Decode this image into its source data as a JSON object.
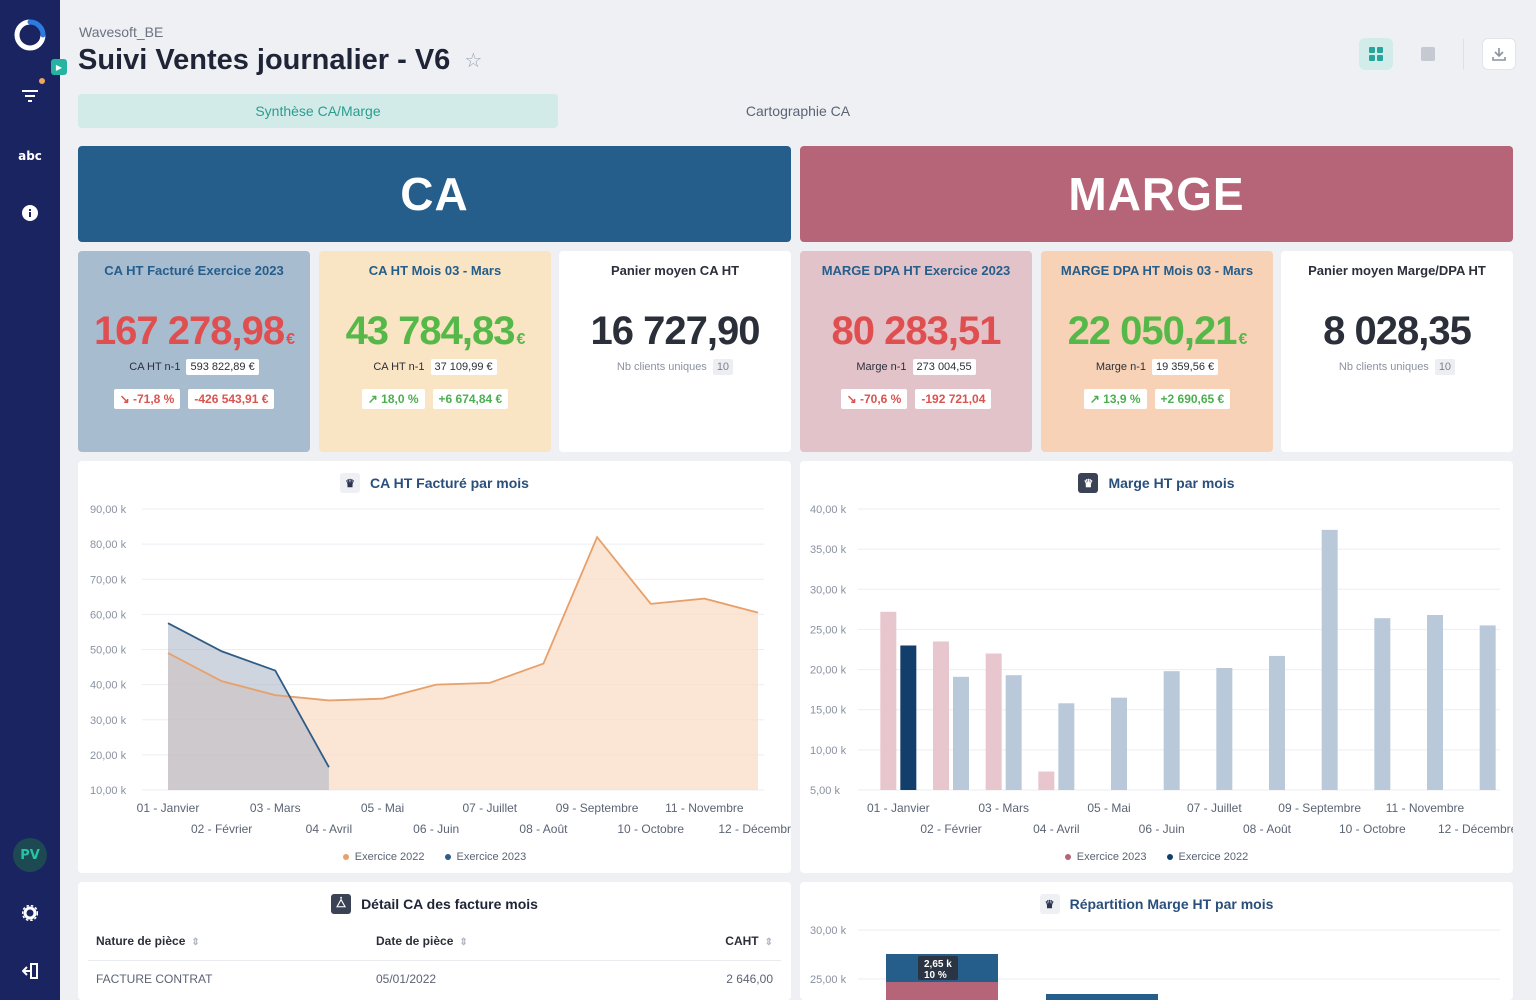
{
  "app": {
    "workspace": "Wavesoft_BE",
    "title": "Suivi Ventes journalier - V6",
    "user_initials": "PV"
  },
  "sidebar": {
    "abc_label": "abc"
  },
  "tabs": [
    {
      "label": "Synthèse CA/Marge",
      "active": true
    },
    {
      "label": "Cartographie CA",
      "active": false
    }
  ],
  "banners": {
    "ca": "CA",
    "marge": "MARGE"
  },
  "kpis": {
    "ca_exercice": {
      "title": "CA HT Facturé Exercice 2023",
      "value": "167 278,98",
      "unit": "€",
      "prev_label": "CA HT n-1",
      "prev_value": "593 822,89 €",
      "delta_pct": "↘ -71,8 %",
      "delta_abs": "-426 543,91 €"
    },
    "ca_mois": {
      "title": "CA HT Mois 03 - Mars",
      "value": "43 784,83",
      "unit": "€",
      "prev_label": "CA HT n-1",
      "prev_value": "37 109,99 €",
      "delta_pct": "↗ 18,0 %",
      "delta_abs": "+6 674,84 €"
    },
    "panier_ca": {
      "title": "Panier moyen CA HT",
      "value": "16 727,90",
      "sub_label": "Nb clients uniques",
      "sub_value": "10"
    },
    "marge_exercice": {
      "title": "MARGE DPA HT Exercice 2023",
      "value": "80 283,51",
      "prev_label": "Marge n-1",
      "prev_value": "273 004,55",
      "delta_pct": "↘ -70,6 %",
      "delta_abs": "-192 721,04"
    },
    "marge_mois": {
      "title": "MARGE DPA HT Mois 03 - Mars",
      "value": "22 050,21",
      "unit": "€",
      "prev_label": "Marge n-1",
      "prev_value": "19 359,56 €",
      "delta_pct": "↗ 13,9 %",
      "delta_abs": "+2 690,65 €"
    },
    "panier_marge": {
      "title": "Panier moyen Marge/DPA HT",
      "value": "8 028,35",
      "sub_label": "Nb clients uniques",
      "sub_value": "10"
    }
  },
  "colors": {
    "sidebar": "#1a2461",
    "ca": "#255d8b",
    "marge": "#b56577",
    "orange": "#e8a06a",
    "blue_line": "#2f5c86",
    "pink_bar": "#e8c6ce",
    "navy_bar": "#123e6b",
    "grey_bar": "#b9c9da"
  },
  "chart_data": [
    {
      "type": "area",
      "title": "CA HT Facturé par mois",
      "categories": [
        "01 - Janvier",
        "02 - Février",
        "03 - Mars",
        "04 - Avril",
        "05 - Mai",
        "06 - Juin",
        "07 - Juillet",
        "08 - Août",
        "09 - Septembre",
        "10 - Octobre",
        "11 - Novembre",
        "12 - Décembre"
      ],
      "y_ticks": [
        "10,00 k",
        "20,00 k",
        "30,00 k",
        "40,00 k",
        "50,00 k",
        "60,00 k",
        "70,00 k",
        "80,00 k",
        "90,00 k"
      ],
      "ylim": [
        10,
        90
      ],
      "series": [
        {
          "name": "Exercice 2022",
          "values": [
            49,
            41,
            37,
            35.5,
            36,
            40,
            40.5,
            46,
            82,
            63,
            64.5,
            60.5
          ]
        },
        {
          "name": "Exercice 2023",
          "values": [
            57.5,
            49.5,
            44,
            16.5,
            null,
            null,
            null,
            null,
            null,
            null,
            null,
            null
          ]
        }
      ]
    },
    {
      "type": "bar",
      "title": "Marge HT par mois",
      "categories": [
        "01 - Janvier",
        "02 - Février",
        "03 - Mars",
        "04 - Avril",
        "05 - Mai",
        "06 - Juin",
        "07 - Juillet",
        "08 - Août",
        "09 - Septembre",
        "10 - Octobre",
        "11 - Novembre",
        "12 - Décembre"
      ],
      "y_ticks": [
        "5,00 k",
        "10,00 k",
        "15,00 k",
        "20,00 k",
        "25,00 k",
        "30,00 k",
        "35,00 k",
        "40,00 k"
      ],
      "ylim": [
        5,
        40
      ],
      "series": [
        {
          "name": "Exercice 2023",
          "values": [
            27.2,
            23.5,
            22,
            7.3,
            null,
            null,
            null,
            null,
            null,
            null,
            null,
            null
          ]
        },
        {
          "name": "Exercice 2022",
          "values": [
            23,
            19.1,
            19.3,
            15.8,
            16.5,
            19.8,
            20.2,
            21.7,
            37.4,
            26.4,
            26.8,
            25.5
          ]
        }
      ]
    },
    {
      "type": "bar",
      "title": "Répartition Marge HT par mois",
      "y_ticks": [
        "25,00 k",
        "30,00 k"
      ],
      "ylim": [
        25,
        30
      ],
      "annotations": [
        {
          "value": "2,65 k",
          "pct": "10 %"
        }
      ]
    }
  ],
  "table": {
    "title": "Détail CA des facture mois",
    "headers": [
      "Nature de pièce",
      "Date de pièce",
      "CAHT"
    ],
    "rows": [
      [
        "FACTURE CONTRAT",
        "05/01/2022",
        "2 646,00"
      ]
    ]
  }
}
